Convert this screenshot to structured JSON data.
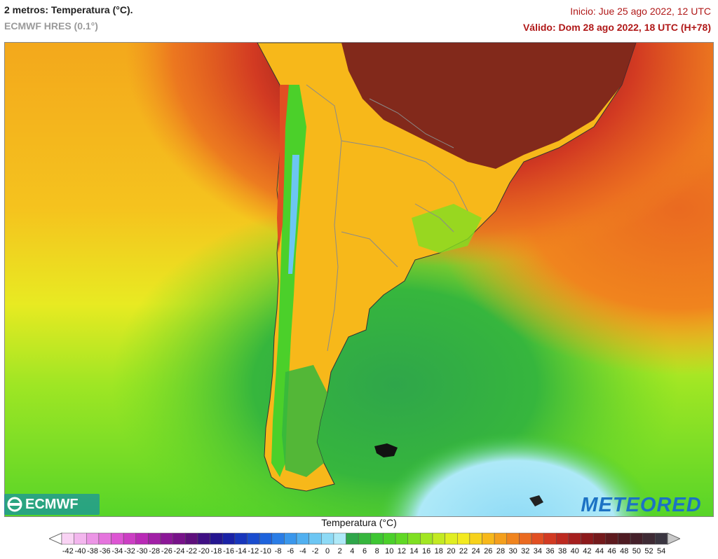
{
  "header": {
    "title": "2 metros: Temperatura (°C).",
    "model": "ECMWF HRES (0.1°)",
    "run": "Inicio: Jue 25 ago 2022, 12 UTC",
    "valid": "Válido: Dom 28 ago 2022, 18 UTC (H+78)"
  },
  "logos": {
    "left": "ECMWF",
    "right": "METEORED"
  },
  "legend": {
    "title": "Temperatura (°C)",
    "ticks": [
      "-42",
      "-40",
      "-38",
      "-36",
      "-34",
      "-32",
      "-30",
      "-28",
      "-26",
      "-24",
      "-22",
      "-20",
      "-18",
      "-16",
      "-14",
      "-12",
      "-10",
      "-8",
      "-6",
      "-4",
      "-2",
      "0",
      "2",
      "4",
      "6",
      "8",
      "10",
      "12",
      "14",
      "16",
      "18",
      "20",
      "22",
      "24",
      "26",
      "28",
      "30",
      "32",
      "34",
      "36",
      "38",
      "40",
      "42",
      "44",
      "46",
      "48",
      "50",
      "52",
      "54"
    ],
    "colors": [
      "#f9d3f4",
      "#f3b6ee",
      "#ec95e6",
      "#e574dd",
      "#dd55d3",
      "#cc3ec4",
      "#b92ab6",
      "#a11fa6",
      "#8b1797",
      "#771289",
      "#5e0f7c",
      "#3f0f83",
      "#251690",
      "#1a22a6",
      "#1836bc",
      "#1a4cce",
      "#1e63dc",
      "#2a7de6",
      "#3a97ec",
      "#51b0f0",
      "#6cc6f3",
      "#8ddaf6",
      "#aee9f8",
      "#2fa64a",
      "#36b63d",
      "#3dc632",
      "#4bd02a",
      "#60d824",
      "#7fdf22",
      "#a2e622",
      "#c3ea22",
      "#e0ee22",
      "#f3ea20",
      "#f7d21c",
      "#f7b81a",
      "#f49f1c",
      "#f0841e",
      "#ea6a20",
      "#e14f22",
      "#d23a22",
      "#bd2a20",
      "#a51f1e",
      "#8c1a1c",
      "#741a1c",
      "#5e1a1e",
      "#4e1b22",
      "#44202a",
      "#3e2a34",
      "#3a3540"
    ]
  }
}
